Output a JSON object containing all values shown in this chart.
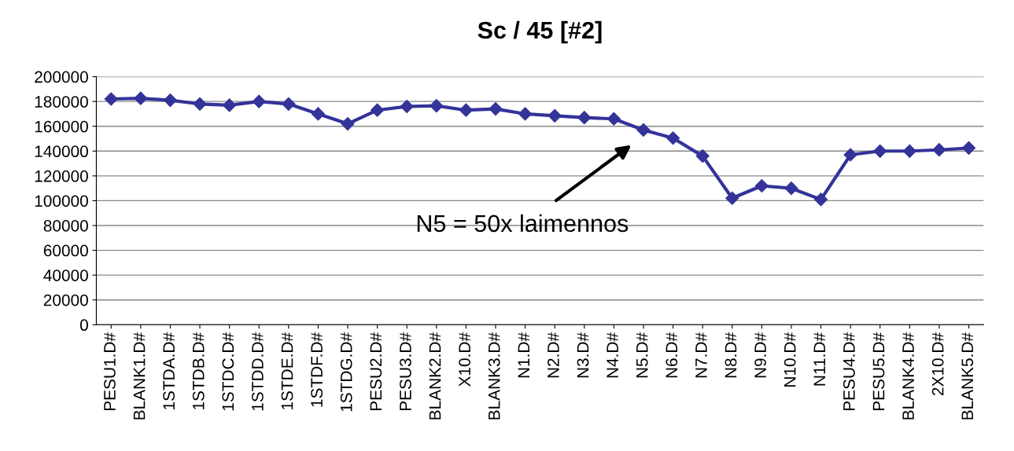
{
  "chart_data": {
    "type": "line",
    "title": "Sc / 45 [#2]",
    "categories": [
      "PESU1.D#",
      "BLANK1.D#",
      "1STDA.D#",
      "1STDB.D#",
      "1STDC.D#",
      "1STDD.D#",
      "1STDE.D#",
      "1STDF.D#",
      "1STDG.D#",
      "PESU2.D#",
      "PESU3.D#",
      "BLANK2.D#",
      "X10.D#",
      "BLANK3.D#",
      "N1.D#",
      "N2.D#",
      "N3.D#",
      "N4.D#",
      "N5.D#",
      "N6.D#",
      "N7.D#",
      "N8.D#",
      "N9.D#",
      "N10.D#",
      "N11.D#",
      "PESU4.D#",
      "PESU5.D#",
      "BLANK4.D#",
      "2X10.D#",
      "BLANK5.D#"
    ],
    "series": [
      {
        "color": "#333399",
        "values": [
          182000,
          182500,
          181000,
          178000,
          177000,
          180000,
          178000,
          170000,
          162000,
          173000,
          176000,
          176500,
          173000,
          174000,
          170000,
          168500,
          167000,
          166000,
          157000,
          150500,
          136000,
          102000,
          112000,
          110000,
          101000,
          137000,
          140000,
          140000,
          141000,
          142500
        ]
      }
    ],
    "ylim": [
      0,
      200000
    ],
    "yticks": [
      0,
      20000,
      40000,
      60000,
      80000,
      100000,
      120000,
      140000,
      160000,
      180000,
      200000
    ],
    "grid": "y",
    "marker": "diamond",
    "line_style": "solid",
    "annotations": [
      "N5 = 50x laimennos"
    ]
  }
}
